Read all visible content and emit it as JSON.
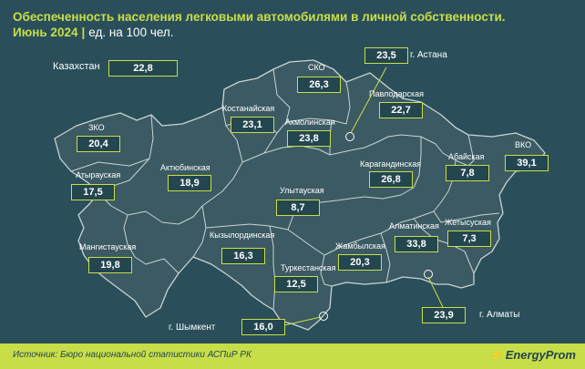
{
  "header": {
    "title": "Обеспеченность населения легковыми автомобилями в личной собственности.",
    "period": "Июнь 2024",
    "separator": "|",
    "unit": "ед. на 100 чел."
  },
  "country": {
    "name": "Казахстан",
    "value": "22,8"
  },
  "regions": [
    {
      "id": "sko",
      "name": "СКО",
      "value": "26,3"
    },
    {
      "id": "kostanay",
      "name": "Костанайская",
      "value": "23,1"
    },
    {
      "id": "akmola",
      "name": "Акмолинская",
      "value": "23,8"
    },
    {
      "id": "pavlodar",
      "name": "Павлодарская",
      "value": "22,7"
    },
    {
      "id": "zko",
      "name": "ЗКО",
      "value": "20,4"
    },
    {
      "id": "atyrau",
      "name": "Атырауская",
      "value": "17,5"
    },
    {
      "id": "aktobe",
      "name": "Актюбинская",
      "value": "18,9"
    },
    {
      "id": "karaganda",
      "name": "Карагандинская",
      "value": "26,8"
    },
    {
      "id": "abay",
      "name": "Абайская",
      "value": "7,8"
    },
    {
      "id": "vko",
      "name": "ВКО",
      "value": "39,1"
    },
    {
      "id": "ulytau",
      "name": "Улытауская",
      "value": "8,7"
    },
    {
      "id": "mangystau",
      "name": "Мангистауская",
      "value": "19,8"
    },
    {
      "id": "kyzylorda",
      "name": "Кызылординская",
      "value": "16,3"
    },
    {
      "id": "almaty_reg",
      "name": "Алматинская",
      "value": "33,8"
    },
    {
      "id": "zhetysu",
      "name": "Жетысуская",
      "value": "7,3"
    },
    {
      "id": "zhambyl",
      "name": "Жамбылская",
      "value": "20,3"
    },
    {
      "id": "turkestan",
      "name": "Туркестанская",
      "value": "12,5"
    }
  ],
  "cities": [
    {
      "id": "astana",
      "name": "г. Астана",
      "value": "23,5"
    },
    {
      "id": "shymkent",
      "name": "г. Шымкент",
      "value": "16,0"
    },
    {
      "id": "almaty",
      "name": "г. Алматы",
      "value": "23,9"
    }
  ],
  "footer": {
    "source": "Источник: Бюро национальной статистики АСПиР РК",
    "brand": "EnergyProm"
  },
  "colors": {
    "background": "#2a4f5a",
    "map_fill": "#3b5a63",
    "border": "#c9d4d2",
    "accent": "#c8de48"
  }
}
